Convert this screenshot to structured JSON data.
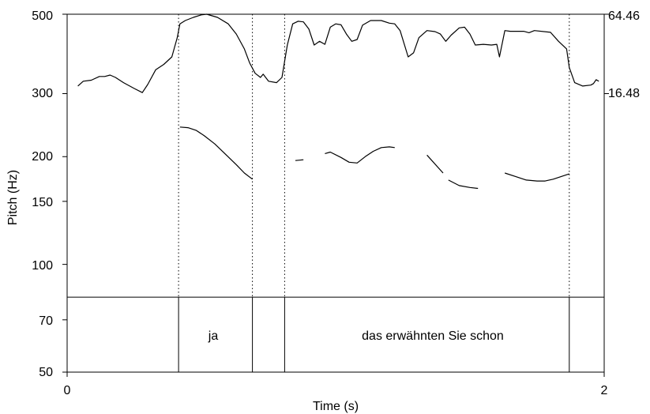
{
  "chart_data": {
    "type": "line",
    "title": "",
    "xlabel": "Time (s)",
    "ylabel": "Pitch (Hz)",
    "xlim": [
      0,
      2
    ],
    "ylim": [
      50,
      500
    ],
    "y_scale": "log",
    "x_ticks": [
      "0",
      "2"
    ],
    "y_ticks_left": [
      {
        "value": 500,
        "label": "500"
      },
      {
        "value": 300,
        "label": "300"
      },
      {
        "value": 200,
        "label": "200"
      },
      {
        "value": 150,
        "label": "150"
      },
      {
        "value": 100,
        "label": "100"
      },
      {
        "value": 70,
        "label": "70"
      },
      {
        "value": 50,
        "label": "50"
      }
    ],
    "right_axis": {
      "ticks": [
        {
          "label": "64.46",
          "at_left_value": 500
        },
        {
          "label": "16.48",
          "at_left_value": 300
        }
      ]
    },
    "boundaries": [
      0.415,
      0.69,
      0.81,
      1.87
    ],
    "tier_top_value": 81,
    "intervals": [
      {
        "start": 0.415,
        "end": 0.69,
        "label": "ja"
      },
      {
        "start": 0.81,
        "end": 1.87,
        "label": "das erwähnten Sie schon"
      }
    ],
    "series": [
      {
        "axis": "right",
        "points": [
          [
            0.04,
            315
          ],
          [
            0.06,
            325
          ],
          [
            0.09,
            327
          ],
          [
            0.12,
            335
          ],
          [
            0.14,
            335
          ],
          [
            0.16,
            338
          ],
          [
            0.18,
            333
          ],
          [
            0.21,
            322
          ],
          [
            0.25,
            310
          ],
          [
            0.28,
            302
          ],
          [
            0.3,
            318
          ],
          [
            0.33,
            350
          ],
          [
            0.36,
            362
          ],
          [
            0.39,
            380
          ],
          [
            0.41,
            430
          ],
          [
            0.42,
            470
          ],
          [
            0.44,
            480
          ],
          [
            0.47,
            490
          ],
          [
            0.5,
            498
          ],
          [
            0.52,
            500
          ],
          [
            0.56,
            490
          ],
          [
            0.6,
            470
          ],
          [
            0.63,
            440
          ],
          [
            0.66,
            400
          ],
          [
            0.68,
            365
          ],
          [
            0.7,
            342
          ],
          [
            0.72,
            333
          ],
          [
            0.73,
            340
          ],
          [
            0.75,
            325
          ],
          [
            0.78,
            322
          ],
          [
            0.8,
            333
          ],
          [
            0.82,
            410
          ],
          [
            0.84,
            470
          ],
          [
            0.86,
            478
          ],
          [
            0.88,
            476
          ],
          [
            0.9,
            455
          ],
          [
            0.92,
            410
          ],
          [
            0.94,
            420
          ],
          [
            0.96,
            412
          ],
          [
            0.98,
            460
          ],
          [
            1.0,
            470
          ],
          [
            1.02,
            467
          ],
          [
            1.04,
            440
          ],
          [
            1.06,
            420
          ],
          [
            1.08,
            425
          ],
          [
            1.1,
            466
          ],
          [
            1.13,
            480
          ],
          [
            1.17,
            480
          ],
          [
            1.2,
            472
          ],
          [
            1.22,
            470
          ],
          [
            1.24,
            450
          ],
          [
            1.27,
            380
          ],
          [
            1.29,
            390
          ],
          [
            1.31,
            430
          ],
          [
            1.34,
            450
          ],
          [
            1.37,
            447
          ],
          [
            1.39,
            440
          ],
          [
            1.41,
            420
          ],
          [
            1.43,
            437
          ],
          [
            1.46,
            458
          ],
          [
            1.48,
            460
          ],
          [
            1.5,
            440
          ],
          [
            1.52,
            410
          ],
          [
            1.55,
            412
          ],
          [
            1.58,
            410
          ],
          [
            1.6,
            412
          ],
          [
            1.61,
            380
          ],
          [
            1.63,
            450
          ],
          [
            1.65,
            448
          ],
          [
            1.7,
            448
          ],
          [
            1.72,
            444
          ],
          [
            1.74,
            450
          ],
          [
            1.8,
            445
          ],
          [
            1.83,
            420
          ],
          [
            1.86,
            400
          ],
          [
            1.87,
            355
          ],
          [
            1.89,
            322
          ],
          [
            1.92,
            315
          ],
          [
            1.95,
            317
          ],
          [
            1.96,
            320
          ],
          [
            1.97,
            328
          ],
          [
            1.98,
            325
          ]
        ]
      },
      {
        "axis": "left",
        "segments": [
          [
            [
              0.42,
              242
            ],
            [
              0.45,
              241
            ],
            [
              0.48,
              237
            ],
            [
              0.51,
              229
            ],
            [
              0.55,
              217
            ],
            [
              0.59,
              203
            ],
            [
              0.63,
              190
            ],
            [
              0.66,
              180
            ],
            [
              0.69,
              173
            ]
          ],
          [
            [
              0.85,
              195
            ],
            [
              0.88,
              196
            ]
          ],
          [
            [
              0.96,
              204
            ],
            [
              0.98,
              206
            ],
            [
              1.02,
              199
            ],
            [
              1.05,
              193
            ],
            [
              1.08,
              192
            ],
            [
              1.11,
              200
            ],
            [
              1.14,
              207
            ],
            [
              1.17,
              212
            ],
            [
              1.2,
              213
            ],
            [
              1.22,
              212
            ]
          ],
          [
            [
              1.34,
              202
            ],
            [
              1.4,
              180
            ]
          ],
          [
            [
              1.42,
              172
            ],
            [
              1.46,
              166
            ],
            [
              1.5,
              164
            ],
            [
              1.53,
              163
            ]
          ],
          [
            [
              1.63,
              180
            ],
            [
              1.67,
              176
            ],
            [
              1.71,
              172
            ],
            [
              1.75,
              171
            ],
            [
              1.78,
              171
            ],
            [
              1.81,
              173
            ],
            [
              1.84,
              176
            ],
            [
              1.87,
              179
            ]
          ]
        ]
      }
    ]
  }
}
